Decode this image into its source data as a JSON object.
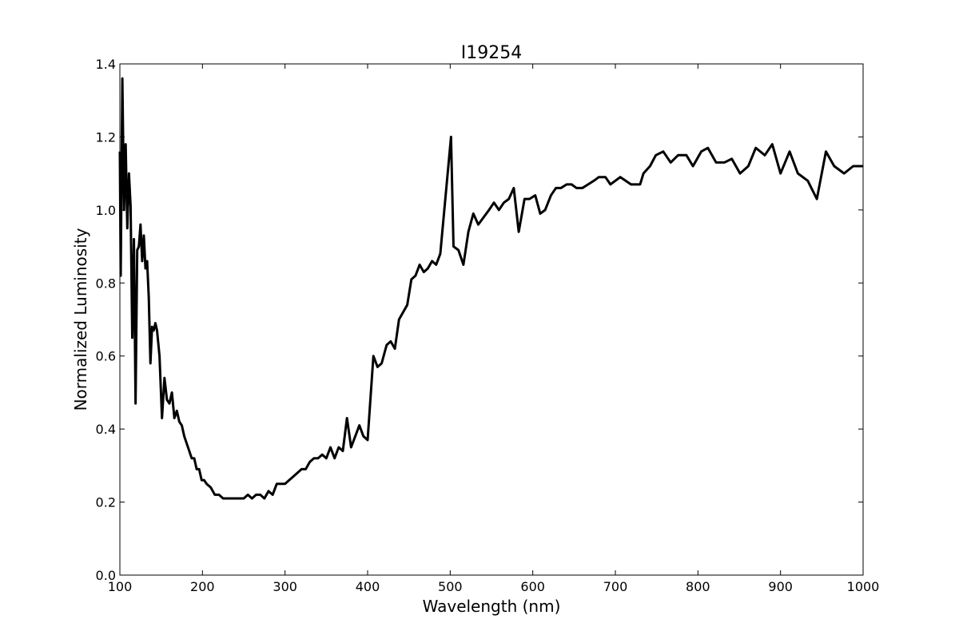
{
  "chart_data": {
    "type": "line",
    "title": "I19254",
    "x_label": "Wavelength (nm)",
    "y_label": "Normalized Luminosity",
    "xlim": [
      100,
      1000
    ],
    "ylim": [
      0,
      1.4
    ],
    "xticks": [
      100,
      200,
      300,
      400,
      500,
      600,
      700,
      800,
      900,
      1000
    ],
    "yticks": [
      {
        "value": 0,
        "label": "0.0"
      },
      0.2,
      0.4,
      0.6,
      0.8,
      {
        "value": 1,
        "label": "1.0"
      },
      1.2,
      1.4
    ],
    "x": [
      100,
      101,
      103,
      105,
      107,
      109,
      111,
      113,
      115,
      117,
      119,
      121,
      123,
      125,
      127,
      129,
      131,
      133,
      135,
      137,
      139,
      141,
      143,
      145,
      148,
      151,
      154,
      157,
      160,
      163,
      166,
      169,
      172,
      175,
      178,
      181,
      184,
      187,
      190,
      193,
      196,
      199,
      202,
      205,
      210,
      215,
      220,
      225,
      230,
      235,
      240,
      245,
      250,
      255,
      260,
      265,
      270,
      275,
      280,
      285,
      290,
      295,
      300,
      305,
      310,
      315,
      320,
      325,
      330,
      335,
      340,
      345,
      350,
      355,
      360,
      365,
      370,
      375,
      380,
      385,
      390,
      395,
      400,
      407,
      412,
      417,
      423,
      428,
      433,
      438,
      448,
      453,
      458,
      463,
      468,
      473,
      478,
      483,
      488,
      501,
      504,
      510,
      516,
      522,
      528,
      534,
      547,
      553,
      559,
      565,
      571,
      577,
      583,
      590,
      596,
      603,
      609,
      615,
      622,
      628,
      634,
      641,
      647,
      653,
      660,
      667,
      674,
      680,
      688,
      694,
      706,
      719,
      730,
      734,
      742,
      749,
      758,
      767,
      776,
      786,
      794,
      804,
      812,
      822,
      832,
      841,
      851,
      861,
      870,
      881,
      890,
      900,
      911,
      921,
      933,
      944,
      955,
      965,
      977,
      988,
      1000
    ],
    "series": [
      {
        "color": "#000000",
        "values": [
          1.16,
          0.82,
          1.36,
          1.0,
          1.18,
          0.95,
          1.1,
          1.01,
          0.65,
          0.92,
          0.47,
          0.89,
          0.9,
          0.96,
          0.86,
          0.93,
          0.84,
          0.86,
          0.76,
          0.58,
          0.68,
          0.67,
          0.69,
          0.67,
          0.6,
          0.43,
          0.54,
          0.48,
          0.47,
          0.5,
          0.43,
          0.45,
          0.42,
          0.41,
          0.38,
          0.36,
          0.34,
          0.32,
          0.32,
          0.29,
          0.29,
          0.26,
          0.26,
          0.25,
          0.24,
          0.22,
          0.22,
          0.21,
          0.21,
          0.21,
          0.21,
          0.21,
          0.21,
          0.22,
          0.21,
          0.22,
          0.22,
          0.21,
          0.23,
          0.22,
          0.25,
          0.25,
          0.25,
          0.26,
          0.27,
          0.28,
          0.29,
          0.29,
          0.31,
          0.32,
          0.32,
          0.33,
          0.32,
          0.35,
          0.32,
          0.35,
          0.34,
          0.43,
          0.35,
          0.38,
          0.41,
          0.38,
          0.37,
          0.6,
          0.57,
          0.58,
          0.63,
          0.64,
          0.62,
          0.7,
          0.74,
          0.81,
          0.82,
          0.85,
          0.83,
          0.84,
          0.86,
          0.85,
          0.88,
          1.2,
          0.9,
          0.89,
          0.85,
          0.94,
          0.99,
          0.96,
          1.0,
          1.02,
          1.0,
          1.02,
          1.03,
          1.06,
          0.94,
          1.03,
          1.03,
          1.04,
          0.99,
          1.0,
          1.04,
          1.06,
          1.06,
          1.07,
          1.07,
          1.06,
          1.06,
          1.07,
          1.08,
          1.09,
          1.09,
          1.07,
          1.09,
          1.07,
          1.07,
          1.1,
          1.12,
          1.15,
          1.16,
          1.13,
          1.15,
          1.15,
          1.12,
          1.16,
          1.17,
          1.13,
          1.13,
          1.14,
          1.1,
          1.12,
          1.17,
          1.15,
          1.18,
          1.1,
          1.16,
          1.1,
          1.08,
          1.03,
          1.16,
          1.12,
          1.1,
          1.12,
          1.12
        ]
      }
    ]
  }
}
